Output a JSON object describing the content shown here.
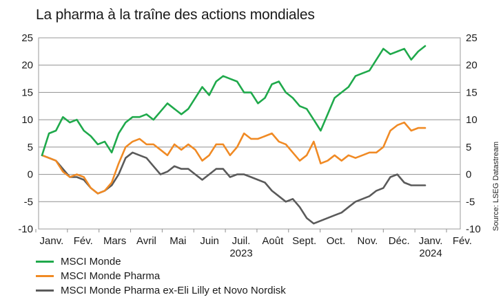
{
  "chart_data": {
    "type": "line",
    "title": "La pharma à la traîne des actions mondiales",
    "source": "Source: LSEG Datastream",
    "ylim": [
      -10,
      25
    ],
    "yticks": [
      -10,
      -5,
      0,
      5,
      10,
      15,
      20,
      25
    ],
    "grid": "horizontal",
    "legend_position": "bottom-left",
    "x_tick_labels": [
      "Janv.",
      "Fév.",
      "Mars",
      "Avril",
      "Mai",
      "Juin",
      "Juil.",
      "Août",
      "Sept.",
      "Oct.",
      "Nov.",
      "Déc.",
      "Janv.",
      "Fév."
    ],
    "x_year_labels": [
      {
        "label": "2023",
        "tick_index": 6
      },
      {
        "label": "2024",
        "tick_index": 12
      }
    ],
    "x": [
      "2023-01-01",
      "2023-01-08",
      "2023-01-15",
      "2023-01-22",
      "2023-01-29",
      "2023-02-05",
      "2023-02-12",
      "2023-02-19",
      "2023-02-26",
      "2023-03-05",
      "2023-03-12",
      "2023-03-19",
      "2023-03-26",
      "2023-04-02",
      "2023-04-09",
      "2023-04-16",
      "2023-04-23",
      "2023-04-30",
      "2023-05-07",
      "2023-05-14",
      "2023-05-21",
      "2023-05-28",
      "2023-06-04",
      "2023-06-11",
      "2023-06-18",
      "2023-06-25",
      "2023-07-02",
      "2023-07-09",
      "2023-07-16",
      "2023-07-23",
      "2023-07-30",
      "2023-08-06",
      "2023-08-13",
      "2023-08-20",
      "2023-08-27",
      "2023-09-03",
      "2023-09-10",
      "2023-09-17",
      "2023-09-24",
      "2023-10-01",
      "2023-10-08",
      "2023-10-15",
      "2023-10-22",
      "2023-10-29",
      "2023-11-05",
      "2023-11-12",
      "2023-11-19",
      "2023-11-26",
      "2023-12-03",
      "2023-12-10",
      "2023-12-17",
      "2023-12-24",
      "2023-12-31",
      "2024-01-07",
      "2024-01-14",
      "2024-01-21"
    ],
    "series": [
      {
        "name": "MSCI Monde",
        "color": "#1fa94b",
        "values": [
          3.5,
          7.5,
          8,
          10.5,
          9.5,
          10,
          8,
          7,
          5.5,
          6,
          4,
          7.5,
          9.5,
          10.5,
          10.5,
          11,
          10,
          11.5,
          13,
          12,
          11,
          12,
          14,
          16,
          14.5,
          17,
          18,
          17.5,
          17,
          15,
          15,
          13,
          14,
          16.5,
          17,
          15,
          14,
          12.5,
          12,
          10,
          8,
          11,
          14,
          15,
          16,
          18,
          18.5,
          19,
          21,
          23,
          22,
          22.5,
          23,
          21,
          22.5,
          23.5
        ]
      },
      {
        "name": "MSCI Monde  Pharma",
        "color": "#f08a24",
        "values": [
          3.5,
          3,
          2.5,
          0.5,
          -0.5,
          0,
          -0.5,
          -2.5,
          -3.5,
          -3,
          -1.5,
          2,
          5,
          6,
          6.5,
          5.5,
          5.5,
          4.5,
          3.5,
          5.5,
          4.5,
          5.5,
          4.5,
          2.5,
          3.5,
          5.5,
          5.5,
          3.5,
          5,
          7.5,
          6.5,
          6.5,
          7,
          7.5,
          6,
          5.5,
          4,
          2.5,
          3.5,
          6,
          2,
          2.5,
          3.5,
          2.5,
          3.5,
          3,
          3.5,
          4,
          4,
          5,
          8,
          9,
          9.5,
          8,
          8.5,
          8.5
        ]
      },
      {
        "name": "MSCI Monde Pharma ex-Eli Lilly et Novo Nordisk",
        "color": "#5a5a5a",
        "values": [
          3.5,
          3,
          2.5,
          1,
          -0.5,
          -0.5,
          -1,
          -2.5,
          -3.5,
          -3,
          -2,
          0,
          3,
          4,
          3.5,
          3,
          1.5,
          0,
          0.5,
          1.5,
          1,
          1,
          0,
          -1,
          0,
          1,
          1,
          -0.5,
          0,
          0,
          -0.5,
          -1,
          -1.5,
          -3,
          -4,
          -5,
          -4.5,
          -6,
          -8,
          -9,
          -8.5,
          -8,
          -7.5,
          -7,
          -6,
          -5,
          -4.5,
          -4,
          -3,
          -2.5,
          -0.5,
          0,
          -1.5,
          -2,
          -2,
          -2
        ]
      }
    ]
  }
}
